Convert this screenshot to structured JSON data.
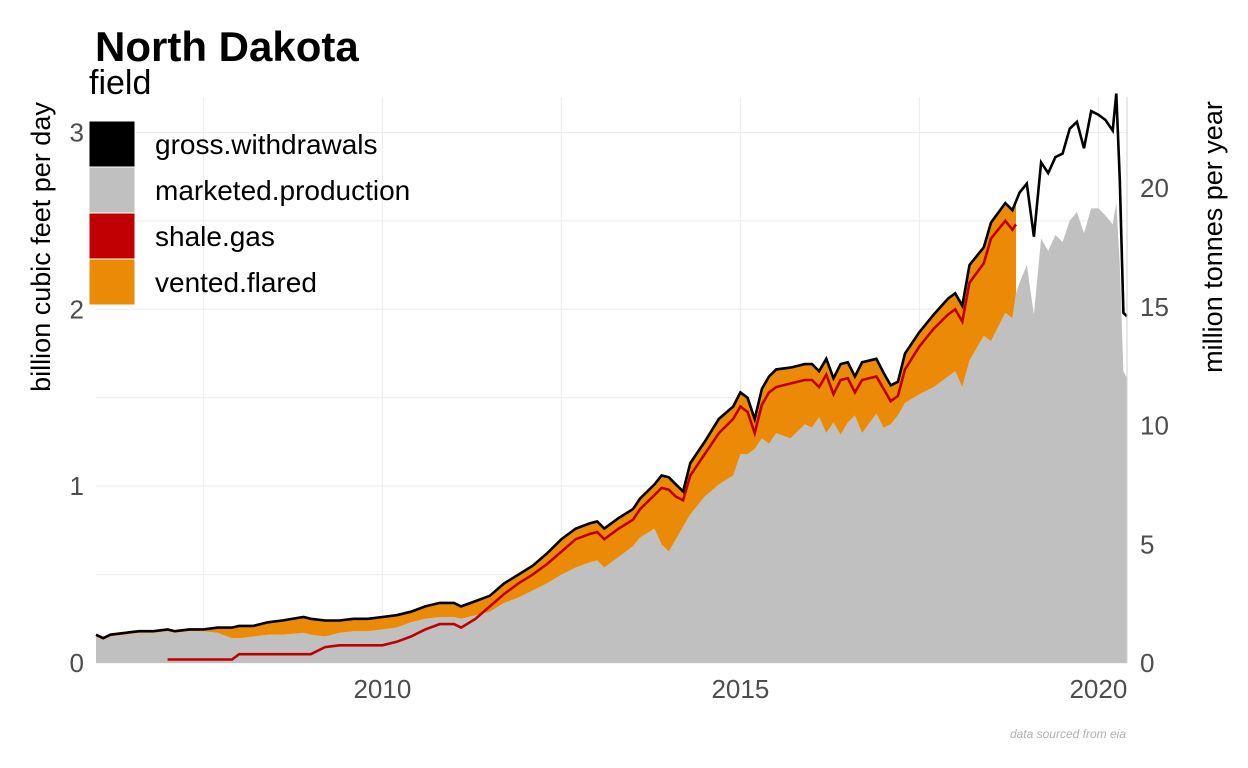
{
  "title": "North Dakota",
  "caption": "data sourced from eia",
  "colors": {
    "gross_withdrawals": "#000000",
    "marketed_production": "#c0c0c0",
    "shale_gas": "#c00000",
    "vented_flared": "#ea8a06"
  },
  "chart_data": {
    "type": "area",
    "title": "North Dakota",
    "legend": {
      "title": "field",
      "placement": "top-left",
      "entries": [
        "gross.withdrawals",
        "marketed.production",
        "shale.gas",
        "vented.flared"
      ]
    },
    "ylabel": "billion cubic feet per day",
    "y2label": "million tonnes per year",
    "x_ticks": [
      "2010",
      "2015",
      "2020"
    ],
    "y_ticks": [
      "0",
      "1",
      "2",
      "3"
    ],
    "y2_ticks": [
      "0",
      "5",
      "10",
      "15",
      "20"
    ],
    "xlim": [
      2006.0,
      2020.4
    ],
    "ylim": [
      0,
      3.2
    ],
    "y2_per_y": 7.45,
    "grid": true,
    "vented_flared_end": 2018.85,
    "shale_gas_start": 2007.0,
    "shale_gas_end": 2018.85,
    "gross_withdrawals": [
      [
        2006.0,
        0.16
      ],
      [
        2006.1,
        0.14
      ],
      [
        2006.2,
        0.16
      ],
      [
        2006.4,
        0.17
      ],
      [
        2006.6,
        0.18
      ],
      [
        2006.8,
        0.18
      ],
      [
        2007.0,
        0.19
      ],
      [
        2007.1,
        0.18
      ],
      [
        2007.3,
        0.19
      ],
      [
        2007.5,
        0.19
      ],
      [
        2007.7,
        0.2
      ],
      [
        2007.9,
        0.2
      ],
      [
        2008.0,
        0.21
      ],
      [
        2008.2,
        0.21
      ],
      [
        2008.4,
        0.23
      ],
      [
        2008.6,
        0.24
      ],
      [
        2008.9,
        0.26
      ],
      [
        2009.0,
        0.25
      ],
      [
        2009.2,
        0.24
      ],
      [
        2009.4,
        0.24
      ],
      [
        2009.6,
        0.25
      ],
      [
        2009.8,
        0.25
      ],
      [
        2010.0,
        0.26
      ],
      [
        2010.2,
        0.27
      ],
      [
        2010.4,
        0.29
      ],
      [
        2010.6,
        0.32
      ],
      [
        2010.8,
        0.34
      ],
      [
        2011.0,
        0.34
      ],
      [
        2011.1,
        0.32
      ],
      [
        2011.3,
        0.35
      ],
      [
        2011.5,
        0.38
      ],
      [
        2011.7,
        0.45
      ],
      [
        2011.9,
        0.5
      ],
      [
        2012.1,
        0.55
      ],
      [
        2012.3,
        0.62
      ],
      [
        2012.5,
        0.7
      ],
      [
        2012.7,
        0.76
      ],
      [
        2012.9,
        0.79
      ],
      [
        2013.0,
        0.8
      ],
      [
        2013.1,
        0.76
      ],
      [
        2013.3,
        0.82
      ],
      [
        2013.5,
        0.87
      ],
      [
        2013.6,
        0.93
      ],
      [
        2013.8,
        1.01
      ],
      [
        2013.9,
        1.06
      ],
      [
        2014.0,
        1.05
      ],
      [
        2014.1,
        1.01
      ],
      [
        2014.2,
        0.97
      ],
      [
        2014.3,
        1.13
      ],
      [
        2014.5,
        1.25
      ],
      [
        2014.7,
        1.38
      ],
      [
        2014.9,
        1.45
      ],
      [
        2015.0,
        1.53
      ],
      [
        2015.1,
        1.5
      ],
      [
        2015.2,
        1.38
      ],
      [
        2015.3,
        1.55
      ],
      [
        2015.4,
        1.62
      ],
      [
        2015.5,
        1.66
      ],
      [
        2015.7,
        1.67
      ],
      [
        2015.9,
        1.69
      ],
      [
        2016.0,
        1.69
      ],
      [
        2016.1,
        1.65
      ],
      [
        2016.2,
        1.72
      ],
      [
        2016.3,
        1.61
      ],
      [
        2016.4,
        1.69
      ],
      [
        2016.5,
        1.7
      ],
      [
        2016.6,
        1.62
      ],
      [
        2016.7,
        1.7
      ],
      [
        2016.9,
        1.72
      ],
      [
        2017.0,
        1.64
      ],
      [
        2017.1,
        1.57
      ],
      [
        2017.2,
        1.59
      ],
      [
        2017.3,
        1.75
      ],
      [
        2017.5,
        1.87
      ],
      [
        2017.7,
        1.97
      ],
      [
        2017.9,
        2.06
      ],
      [
        2018.0,
        2.09
      ],
      [
        2018.1,
        2.02
      ],
      [
        2018.2,
        2.25
      ],
      [
        2018.4,
        2.35
      ],
      [
        2018.5,
        2.49
      ],
      [
        2018.7,
        2.6
      ],
      [
        2018.8,
        2.56
      ],
      [
        2018.9,
        2.66
      ],
      [
        2019.0,
        2.71
      ],
      [
        2019.1,
        2.41
      ],
      [
        2019.2,
        2.83
      ],
      [
        2019.3,
        2.77
      ],
      [
        2019.4,
        2.86
      ],
      [
        2019.5,
        2.88
      ],
      [
        2019.6,
        3.02
      ],
      [
        2019.7,
        3.06
      ],
      [
        2019.8,
        2.91
      ],
      [
        2019.9,
        3.12
      ],
      [
        2020.0,
        3.1
      ],
      [
        2020.1,
        3.07
      ],
      [
        2020.2,
        3.01
      ],
      [
        2020.25,
        3.22
      ],
      [
        2020.3,
        2.73
      ],
      [
        2020.35,
        1.98
      ],
      [
        2020.4,
        1.96
      ]
    ],
    "vented_flared_lower": [
      [
        2006.0,
        0.15
      ],
      [
        2006.1,
        0.13
      ],
      [
        2006.2,
        0.15
      ],
      [
        2006.4,
        0.16
      ],
      [
        2006.6,
        0.17
      ],
      [
        2006.8,
        0.17
      ],
      [
        2007.0,
        0.18
      ],
      [
        2007.1,
        0.17
      ],
      [
        2007.3,
        0.18
      ],
      [
        2007.5,
        0.18
      ],
      [
        2007.7,
        0.17
      ],
      [
        2007.9,
        0.14
      ],
      [
        2008.0,
        0.14
      ],
      [
        2008.2,
        0.15
      ],
      [
        2008.4,
        0.16
      ],
      [
        2008.6,
        0.16
      ],
      [
        2008.9,
        0.17
      ],
      [
        2009.0,
        0.16
      ],
      [
        2009.2,
        0.15
      ],
      [
        2009.4,
        0.17
      ],
      [
        2009.6,
        0.18
      ],
      [
        2009.8,
        0.18
      ],
      [
        2010.0,
        0.19
      ],
      [
        2010.2,
        0.2
      ],
      [
        2010.4,
        0.23
      ],
      [
        2010.6,
        0.25
      ],
      [
        2010.8,
        0.26
      ],
      [
        2011.0,
        0.26
      ],
      [
        2011.1,
        0.25
      ],
      [
        2011.3,
        0.27
      ],
      [
        2011.5,
        0.29
      ],
      [
        2011.7,
        0.34
      ],
      [
        2011.9,
        0.37
      ],
      [
        2012.1,
        0.41
      ],
      [
        2012.3,
        0.45
      ],
      [
        2012.5,
        0.5
      ],
      [
        2012.7,
        0.54
      ],
      [
        2012.9,
        0.57
      ],
      [
        2013.0,
        0.58
      ],
      [
        2013.1,
        0.54
      ],
      [
        2013.3,
        0.6
      ],
      [
        2013.5,
        0.66
      ],
      [
        2013.6,
        0.71
      ],
      [
        2013.8,
        0.76
      ],
      [
        2013.9,
        0.67
      ],
      [
        2014.0,
        0.63
      ],
      [
        2014.1,
        0.7
      ],
      [
        2014.2,
        0.77
      ],
      [
        2014.3,
        0.84
      ],
      [
        2014.5,
        0.94
      ],
      [
        2014.7,
        1.01
      ],
      [
        2014.9,
        1.06
      ],
      [
        2015.0,
        1.18
      ],
      [
        2015.1,
        1.18
      ],
      [
        2015.2,
        1.21
      ],
      [
        2015.3,
        1.27
      ],
      [
        2015.4,
        1.24
      ],
      [
        2015.5,
        1.3
      ],
      [
        2015.7,
        1.27
      ],
      [
        2015.9,
        1.35
      ],
      [
        2016.0,
        1.33
      ],
      [
        2016.1,
        1.39
      ],
      [
        2016.2,
        1.3
      ],
      [
        2016.3,
        1.36
      ],
      [
        2016.4,
        1.29
      ],
      [
        2016.5,
        1.36
      ],
      [
        2016.6,
        1.4
      ],
      [
        2016.7,
        1.3
      ],
      [
        2016.9,
        1.41
      ],
      [
        2017.0,
        1.33
      ],
      [
        2017.1,
        1.35
      ],
      [
        2017.2,
        1.4
      ],
      [
        2017.3,
        1.47
      ],
      [
        2017.5,
        1.52
      ],
      [
        2017.7,
        1.56
      ],
      [
        2017.9,
        1.62
      ],
      [
        2018.0,
        1.65
      ],
      [
        2018.1,
        1.56
      ],
      [
        2018.2,
        1.71
      ],
      [
        2018.4,
        1.85
      ],
      [
        2018.5,
        1.82
      ],
      [
        2018.7,
        1.98
      ],
      [
        2018.8,
        1.95
      ],
      [
        2018.85,
        2.09
      ]
    ],
    "marketed_production": [
      [
        2006.0,
        0.15
      ],
      [
        2006.1,
        0.13
      ],
      [
        2006.2,
        0.15
      ],
      [
        2006.4,
        0.16
      ],
      [
        2006.6,
        0.17
      ],
      [
        2006.8,
        0.17
      ],
      [
        2007.0,
        0.18
      ],
      [
        2007.1,
        0.17
      ],
      [
        2007.3,
        0.18
      ],
      [
        2007.5,
        0.18
      ],
      [
        2007.7,
        0.17
      ],
      [
        2007.9,
        0.14
      ],
      [
        2008.0,
        0.14
      ],
      [
        2008.2,
        0.15
      ],
      [
        2008.4,
        0.16
      ],
      [
        2008.6,
        0.16
      ],
      [
        2008.9,
        0.17
      ],
      [
        2009.0,
        0.16
      ],
      [
        2009.2,
        0.15
      ],
      [
        2009.4,
        0.17
      ],
      [
        2009.6,
        0.18
      ],
      [
        2009.8,
        0.18
      ],
      [
        2010.0,
        0.19
      ],
      [
        2010.2,
        0.2
      ],
      [
        2010.4,
        0.23
      ],
      [
        2010.6,
        0.25
      ],
      [
        2010.8,
        0.26
      ],
      [
        2011.0,
        0.26
      ],
      [
        2011.1,
        0.25
      ],
      [
        2011.3,
        0.27
      ],
      [
        2011.5,
        0.29
      ],
      [
        2011.7,
        0.34
      ],
      [
        2011.9,
        0.37
      ],
      [
        2012.1,
        0.41
      ],
      [
        2012.3,
        0.45
      ],
      [
        2012.5,
        0.5
      ],
      [
        2012.7,
        0.54
      ],
      [
        2012.9,
        0.57
      ],
      [
        2013.0,
        0.58
      ],
      [
        2013.1,
        0.54
      ],
      [
        2013.3,
        0.6
      ],
      [
        2013.5,
        0.66
      ],
      [
        2013.6,
        0.71
      ],
      [
        2013.8,
        0.76
      ],
      [
        2013.9,
        0.67
      ],
      [
        2014.0,
        0.63
      ],
      [
        2014.1,
        0.7
      ],
      [
        2014.2,
        0.77
      ],
      [
        2014.3,
        0.84
      ],
      [
        2014.5,
        0.94
      ],
      [
        2014.7,
        1.01
      ],
      [
        2014.9,
        1.06
      ],
      [
        2015.0,
        1.18
      ],
      [
        2015.1,
        1.18
      ],
      [
        2015.2,
        1.21
      ],
      [
        2015.3,
        1.27
      ],
      [
        2015.4,
        1.24
      ],
      [
        2015.5,
        1.3
      ],
      [
        2015.7,
        1.27
      ],
      [
        2015.9,
        1.35
      ],
      [
        2016.0,
        1.33
      ],
      [
        2016.1,
        1.39
      ],
      [
        2016.2,
        1.3
      ],
      [
        2016.3,
        1.36
      ],
      [
        2016.4,
        1.29
      ],
      [
        2016.5,
        1.36
      ],
      [
        2016.6,
        1.4
      ],
      [
        2016.7,
        1.3
      ],
      [
        2016.9,
        1.41
      ],
      [
        2017.0,
        1.33
      ],
      [
        2017.1,
        1.35
      ],
      [
        2017.2,
        1.4
      ],
      [
        2017.3,
        1.47
      ],
      [
        2017.5,
        1.52
      ],
      [
        2017.7,
        1.56
      ],
      [
        2017.9,
        1.62
      ],
      [
        2018.0,
        1.65
      ],
      [
        2018.1,
        1.56
      ],
      [
        2018.2,
        1.71
      ],
      [
        2018.4,
        1.85
      ],
      [
        2018.5,
        1.82
      ],
      [
        2018.7,
        1.98
      ],
      [
        2018.8,
        1.95
      ],
      [
        2018.85,
        2.09
      ],
      [
        2018.9,
        2.15
      ],
      [
        2019.0,
        2.25
      ],
      [
        2019.1,
        1.97
      ],
      [
        2019.2,
        2.4
      ],
      [
        2019.3,
        2.33
      ],
      [
        2019.4,
        2.42
      ],
      [
        2019.5,
        2.38
      ],
      [
        2019.6,
        2.5
      ],
      [
        2019.7,
        2.55
      ],
      [
        2019.8,
        2.43
      ],
      [
        2019.9,
        2.57
      ],
      [
        2020.0,
        2.57
      ],
      [
        2020.1,
        2.53
      ],
      [
        2020.2,
        2.48
      ],
      [
        2020.25,
        2.6
      ],
      [
        2020.3,
        2.25
      ],
      [
        2020.35,
        1.65
      ],
      [
        2020.4,
        1.61
      ]
    ],
    "shale_gas": [
      [
        2007.0,
        0.02
      ],
      [
        2007.9,
        0.02
      ],
      [
        2008.0,
        0.05
      ],
      [
        2008.6,
        0.05
      ],
      [
        2009.0,
        0.05
      ],
      [
        2009.2,
        0.09
      ],
      [
        2009.4,
        0.1
      ],
      [
        2009.8,
        0.1
      ],
      [
        2010.0,
        0.1
      ],
      [
        2010.2,
        0.12
      ],
      [
        2010.4,
        0.15
      ],
      [
        2010.6,
        0.19
      ],
      [
        2010.8,
        0.22
      ],
      [
        2011.0,
        0.22
      ],
      [
        2011.1,
        0.2
      ],
      [
        2011.3,
        0.25
      ],
      [
        2011.5,
        0.32
      ],
      [
        2011.7,
        0.39
      ],
      [
        2011.9,
        0.45
      ],
      [
        2012.1,
        0.5
      ],
      [
        2012.3,
        0.56
      ],
      [
        2012.5,
        0.63
      ],
      [
        2012.7,
        0.7
      ],
      [
        2012.9,
        0.73
      ],
      [
        2013.0,
        0.74
      ],
      [
        2013.1,
        0.7
      ],
      [
        2013.3,
        0.76
      ],
      [
        2013.5,
        0.81
      ],
      [
        2013.6,
        0.87
      ],
      [
        2013.8,
        0.95
      ],
      [
        2013.9,
        0.99
      ],
      [
        2014.0,
        0.98
      ],
      [
        2014.1,
        0.94
      ],
      [
        2014.2,
        0.92
      ],
      [
        2014.3,
        1.06
      ],
      [
        2014.5,
        1.18
      ],
      [
        2014.7,
        1.3
      ],
      [
        2014.9,
        1.38
      ],
      [
        2015.0,
        1.45
      ],
      [
        2015.1,
        1.42
      ],
      [
        2015.2,
        1.3
      ],
      [
        2015.3,
        1.46
      ],
      [
        2015.4,
        1.53
      ],
      [
        2015.5,
        1.56
      ],
      [
        2015.7,
        1.58
      ],
      [
        2015.9,
        1.6
      ],
      [
        2016.0,
        1.6
      ],
      [
        2016.1,
        1.56
      ],
      [
        2016.2,
        1.63
      ],
      [
        2016.3,
        1.52
      ],
      [
        2016.4,
        1.6
      ],
      [
        2016.5,
        1.61
      ],
      [
        2016.6,
        1.53
      ],
      [
        2016.7,
        1.6
      ],
      [
        2016.9,
        1.62
      ],
      [
        2017.0,
        1.55
      ],
      [
        2017.1,
        1.48
      ],
      [
        2017.2,
        1.51
      ],
      [
        2017.3,
        1.66
      ],
      [
        2017.5,
        1.79
      ],
      [
        2017.7,
        1.89
      ],
      [
        2017.9,
        1.97
      ],
      [
        2018.0,
        2.0
      ],
      [
        2018.1,
        1.93
      ],
      [
        2018.2,
        2.15
      ],
      [
        2018.4,
        2.26
      ],
      [
        2018.5,
        2.4
      ],
      [
        2018.7,
        2.5
      ],
      [
        2018.8,
        2.45
      ],
      [
        2018.85,
        2.48
      ]
    ]
  }
}
